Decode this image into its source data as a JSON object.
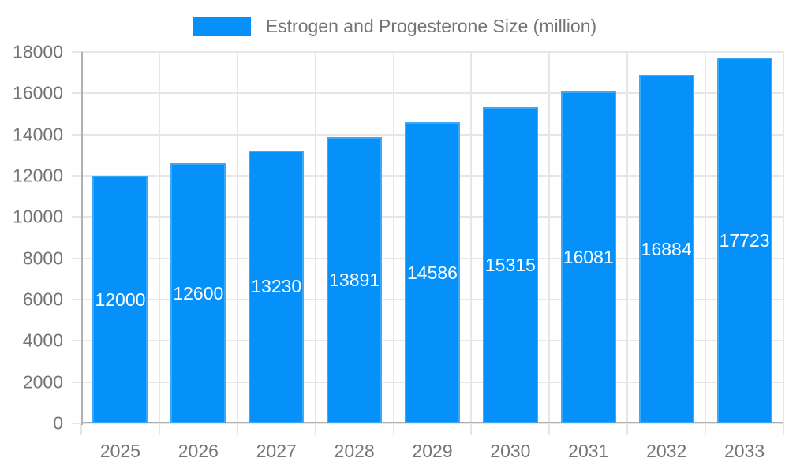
{
  "legend": {
    "label": "Estrogen and Progesterone Size (million)"
  },
  "chart_data": {
    "type": "bar",
    "title": "Estrogen and Progesterone Size (million)",
    "series_name": "Estrogen and Progesterone Size (million)",
    "categories": [
      "2025",
      "2026",
      "2027",
      "2028",
      "2029",
      "2030",
      "2031",
      "2032",
      "2033"
    ],
    "values": [
      12000,
      12600,
      13230,
      13891,
      14586,
      15315,
      16081,
      16884,
      17723
    ],
    "value_labels": [
      "12000",
      "12600",
      "13230",
      "13891",
      "14586",
      "15315",
      "16081",
      "16884",
      "17723"
    ],
    "xlabel": "",
    "ylabel": "",
    "ylim": [
      0,
      18000
    ],
    "yticks": [
      0,
      2000,
      4000,
      6000,
      8000,
      10000,
      12000,
      14000,
      16000,
      18000
    ],
    "ytick_labels": [
      "0",
      "2000",
      "4000",
      "6000",
      "8000",
      "10000",
      "12000",
      "14000",
      "16000",
      "18000"
    ],
    "grid": true,
    "legend_position": "top",
    "colors": {
      "bar_fill": "#0591f9",
      "value_label": "#ffffff",
      "axis_text": "#757575",
      "gridline": "#e6e6e6",
      "axis_line": "#b0b0b0"
    }
  }
}
